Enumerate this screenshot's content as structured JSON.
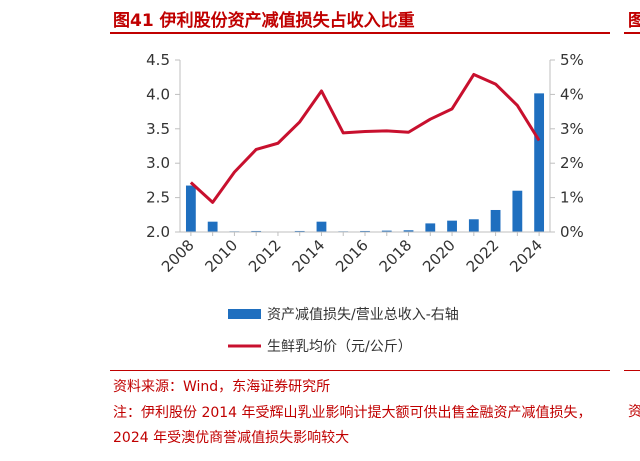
{
  "figure": {
    "title": "图41  伊利股份资产减值损失占收入比重",
    "right_fragment": "图",
    "source": "资料来源：Wind，东海证券研究所",
    "note": "注：伊利股份 2014 年受辉山乳业影响计提大额可供出售金融资产减值损失，2024 年受澳优商誉减值损失影响较大",
    "note_right_fragment": "资"
  },
  "colors": {
    "bar": "#1f6fbf",
    "line": "#c8102e",
    "accent": "#c00000",
    "axis": "#bfbfbf"
  },
  "chart_data": {
    "type": "bar+line",
    "x": [
      2008,
      2009,
      2010,
      2011,
      2012,
      2013,
      2014,
      2015,
      2016,
      2017,
      2018,
      2019,
      2020,
      2021,
      2022,
      2023,
      2024
    ],
    "x_tick_labels": [
      "2008",
      "2010",
      "2012",
      "2014",
      "2016",
      "2018",
      "2020",
      "2022",
      "2024"
    ],
    "left_axis": {
      "ylim": [
        2.0,
        4.5
      ],
      "ticks": [
        "2.0",
        "2.5",
        "3.0",
        "3.5",
        "4.0",
        "4.5"
      ]
    },
    "right_axis": {
      "ylim": [
        0,
        5
      ],
      "ticks": [
        "0%",
        "1%",
        "2%",
        "3%",
        "4%",
        "5%"
      ]
    },
    "series": [
      {
        "name": "资产减值损失/营业总收入-右轴",
        "type": "bar",
        "axis": "right",
        "values": [
          1.35,
          0.3,
          0.02,
          0.03,
          0.01,
          0.03,
          0.3,
          0.02,
          0.03,
          0.04,
          0.05,
          0.25,
          0.33,
          0.37,
          0.64,
          1.2,
          4.03
        ]
      },
      {
        "name": "生鲜乳均价（元/公斤）",
        "type": "line",
        "axis": "left",
        "values": [
          2.72,
          2.43,
          2.87,
          3.2,
          3.29,
          3.6,
          4.05,
          3.44,
          3.46,
          3.47,
          3.45,
          3.64,
          3.79,
          4.29,
          4.15,
          3.84,
          3.33
        ]
      }
    ],
    "legend_position": "bottom",
    "grid": false
  }
}
